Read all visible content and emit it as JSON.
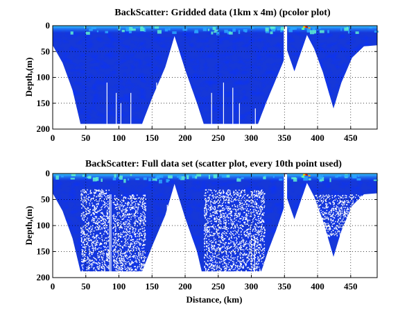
{
  "chart_data": [
    {
      "type": "heatmap",
      "title": "BackScatter: Gridded data (1km x 4m) (pcolor plot)",
      "xlabel": "",
      "ylabel": "Depth,(m)",
      "xlim": [
        0,
        490
      ],
      "ylim": [
        200,
        0
      ],
      "y_reversed": true,
      "xticks": [
        0,
        50,
        100,
        150,
        200,
        250,
        300,
        350,
        400,
        450
      ],
      "yticks": [
        0,
        50,
        100,
        150,
        200
      ],
      "grid": true,
      "grid_style": "dotted",
      "colormap": "jet",
      "background_color": "#ffffff",
      "data_gap_km": [
        349,
        354
      ],
      "bottom_profile_km_depth": [
        [
          0,
          38
        ],
        [
          15,
          72
        ],
        [
          30,
          125
        ],
        [
          42,
          190
        ],
        [
          90,
          190
        ],
        [
          135,
          190
        ],
        [
          150,
          140
        ],
        [
          170,
          80
        ],
        [
          184,
          20
        ],
        [
          200,
          85
        ],
        [
          218,
          150
        ],
        [
          228,
          190
        ],
        [
          265,
          190
        ],
        [
          310,
          190
        ],
        [
          322,
          150
        ],
        [
          335,
          110
        ],
        [
          348,
          70
        ],
        [
          354,
          48
        ],
        [
          365,
          88
        ],
        [
          372,
          62
        ],
        [
          384,
          18
        ],
        [
          395,
          45
        ],
        [
          408,
          90
        ],
        [
          424,
          160
        ],
        [
          436,
          110
        ],
        [
          452,
          62
        ],
        [
          470,
          40
        ],
        [
          490,
          38
        ]
      ]
    },
    {
      "type": "scatter",
      "title": "BackScatter: Full data set (scatter plot, every 10th point used)",
      "xlabel": "Distance, (km)",
      "ylabel": "Depth,(m)",
      "xlim": [
        0,
        490
      ],
      "ylim": [
        200,
        0
      ],
      "y_reversed": true,
      "xticks": [
        0,
        50,
        100,
        150,
        200,
        250,
        300,
        350,
        400,
        450
      ],
      "yticks": [
        0,
        50,
        100,
        150,
        200
      ],
      "grid": true,
      "grid_style": "dotted",
      "colormap": "jet",
      "background_color": "#ffffff",
      "data_gap_km": [
        349,
        354
      ],
      "bottom_profile_km_depth": [
        [
          0,
          38
        ],
        [
          15,
          72
        ],
        [
          30,
          125
        ],
        [
          42,
          188
        ],
        [
          90,
          188
        ],
        [
          135,
          188
        ],
        [
          150,
          140
        ],
        [
          170,
          80
        ],
        [
          184,
          20
        ],
        [
          200,
          85
        ],
        [
          218,
          150
        ],
        [
          225,
          188
        ],
        [
          265,
          188
        ],
        [
          315,
          188
        ],
        [
          325,
          150
        ],
        [
          337,
          110
        ],
        [
          348,
          70
        ],
        [
          354,
          48
        ],
        [
          365,
          88
        ],
        [
          372,
          62
        ],
        [
          384,
          18
        ],
        [
          395,
          45
        ],
        [
          408,
          90
        ],
        [
          424,
          160
        ],
        [
          436,
          110
        ],
        [
          452,
          62
        ],
        [
          470,
          40
        ],
        [
          490,
          38
        ]
      ]
    }
  ]
}
